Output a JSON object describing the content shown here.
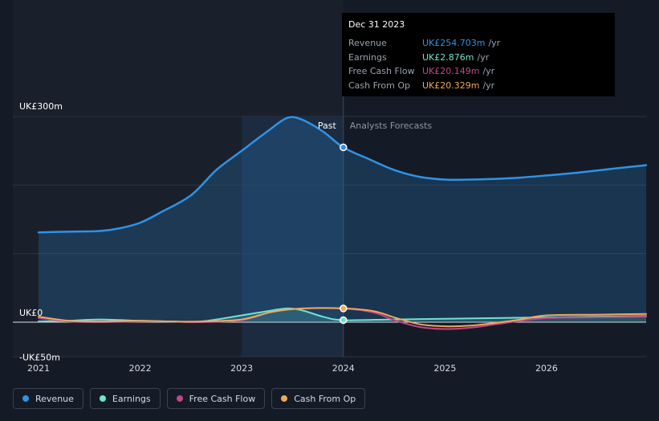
{
  "tooltip": {
    "date": "Dec 31 2023",
    "rows": [
      {
        "label": "Revenue",
        "value": "UK£254.703m",
        "unit": "/yr",
        "color": "#2e93e8"
      },
      {
        "label": "Earnings",
        "value": "UK£2.876m",
        "unit": "/yr",
        "color": "#6ee3cf"
      },
      {
        "label": "Free Cash Flow",
        "value": "UK£20.149m",
        "unit": "/yr",
        "color": "#c2458a"
      },
      {
        "label": "Cash From Op",
        "value": "UK£20.329m",
        "unit": "/yr",
        "color": "#f0a95a"
      }
    ]
  },
  "legend": [
    {
      "label": "Revenue",
      "color": "#2e93e8"
    },
    {
      "label": "Earnings",
      "color": "#6ee3cf"
    },
    {
      "label": "Free Cash Flow",
      "color": "#c2458a"
    },
    {
      "label": "Cash From Op",
      "color": "#f0a95a"
    }
  ],
  "chart_data": {
    "type": "line",
    "title": "",
    "past_label": "Past",
    "forecast_label": "Analysts Forecasts",
    "y_labels": [
      "UK£300m",
      "UK£0",
      "-UK£50m"
    ],
    "ylim": [
      -50,
      300
    ],
    "xlim": [
      2020.9,
      2026.98
    ],
    "divider_x": 2024.0,
    "highlight_start": 2023.0,
    "x_ticks": [
      {
        "value": 2021.0,
        "label": "2021"
      },
      {
        "value": 2022.0,
        "label": "2022"
      },
      {
        "value": 2023.0,
        "label": "2023"
      },
      {
        "value": 2024.0,
        "label": "2024"
      },
      {
        "value": 2025.0,
        "label": "2025"
      },
      {
        "value": 2026.0,
        "label": "2026"
      }
    ],
    "series": [
      {
        "name": "Revenue",
        "color": "#2e93e8",
        "area": true,
        "marker_at": 2024.0,
        "x": [
          2021.0,
          2021.3,
          2021.6,
          2021.8,
          2022.0,
          2022.2,
          2022.5,
          2022.75,
          2023.0,
          2023.25,
          2023.45,
          2023.6,
          2023.8,
          2024.0,
          2024.25,
          2024.5,
          2024.75,
          2025.0,
          2025.25,
          2025.5,
          2025.75,
          2026.0,
          2026.3,
          2026.6,
          2026.98
        ],
        "values": [
          131,
          132,
          133,
          137,
          145,
          160,
          185,
          222,
          250,
          278,
          298,
          295,
          278,
          255,
          238,
          222,
          212,
          208,
          208,
          209,
          211,
          214,
          218,
          223,
          229
        ]
      },
      {
        "name": "Earnings",
        "color": "#6ee3cf",
        "area": true,
        "marker_at": 2024.0,
        "x": [
          2021.0,
          2021.3,
          2021.6,
          2022.0,
          2022.3,
          2022.6,
          2023.0,
          2023.25,
          2023.45,
          2023.6,
          2023.8,
          2024.0,
          2024.5,
          2025.0,
          2025.5,
          2026.0,
          2026.5,
          2026.98
        ],
        "values": [
          1,
          2,
          4,
          2,
          1,
          1,
          10,
          16,
          20,
          17,
          8,
          3,
          4,
          5,
          6,
          7,
          8,
          9
        ]
      },
      {
        "name": "Free Cash Flow",
        "color": "#c2458a",
        "area": false,
        "x": [
          2021.0,
          2021.3,
          2021.6,
          2022.0,
          2022.3,
          2022.6,
          2023.0,
          2023.3,
          2023.6,
          2024.0,
          2024.3,
          2024.5,
          2024.75,
          2025.0,
          2025.25,
          2025.5,
          2025.75,
          2026.0,
          2026.5,
          2026.98
        ],
        "values": [
          6,
          1,
          0,
          1,
          1,
          0,
          3,
          15,
          20,
          20,
          14,
          3,
          -7,
          -10,
          -8,
          -3,
          2,
          6,
          7,
          8
        ]
      },
      {
        "name": "Cash From Op",
        "color": "#f0a95a",
        "area": false,
        "marker_at": 2024.0,
        "x": [
          2021.0,
          2021.3,
          2021.6,
          2022.0,
          2022.3,
          2022.6,
          2023.0,
          2023.3,
          2023.6,
          2024.0,
          2024.3,
          2024.5,
          2024.75,
          2025.0,
          2025.25,
          2025.5,
          2025.75,
          2026.0,
          2026.5,
          2026.98
        ],
        "values": [
          8,
          2,
          1,
          2,
          1,
          1,
          4,
          15,
          20,
          20,
          16,
          7,
          -3,
          -6,
          -5,
          -1,
          4,
          10,
          11,
          12
        ]
      }
    ]
  }
}
